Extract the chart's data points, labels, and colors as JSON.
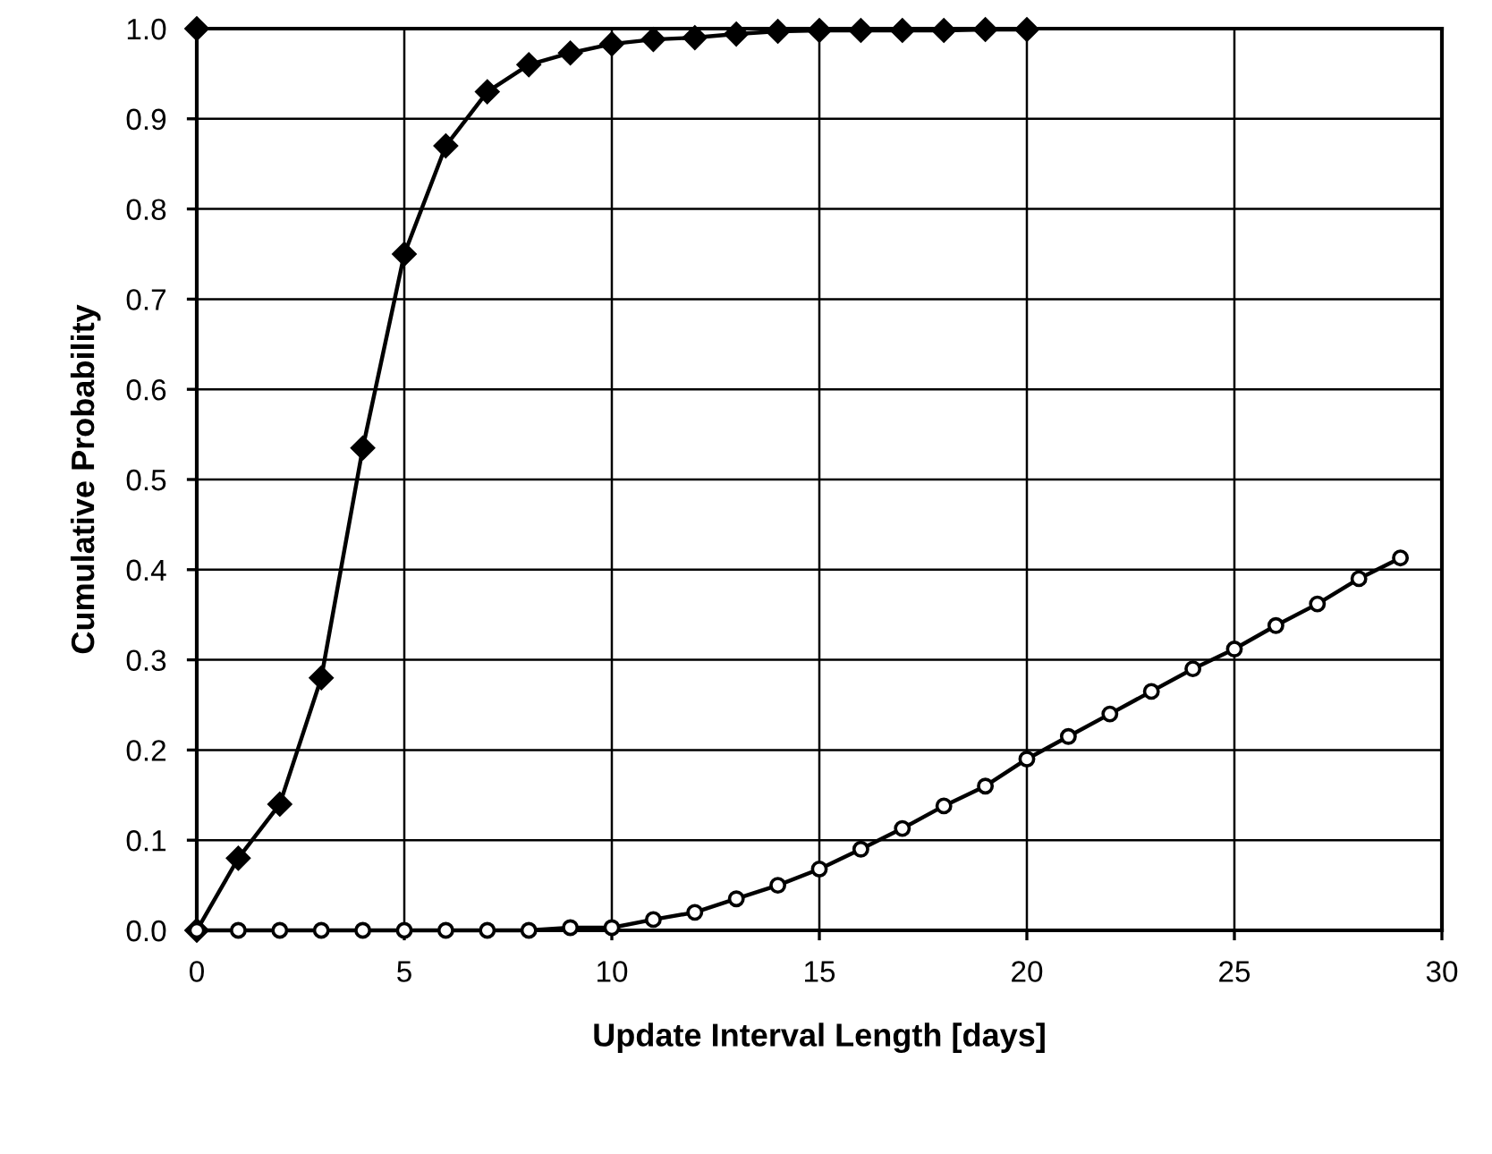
{
  "chart_data": {
    "type": "line",
    "xlabel": "Update Interval Length [days]",
    "ylabel": "Cumulative Probability",
    "x": [
      0,
      1,
      2,
      3,
      4,
      5,
      6,
      7,
      8,
      9,
      10,
      11,
      12,
      13,
      14,
      15,
      16,
      17,
      18,
      19,
      20,
      21,
      22,
      23,
      24,
      25,
      26,
      27,
      28,
      29
    ],
    "series": [
      {
        "color": "#000000",
        "marker": "diamond",
        "x": [
          0,
          1,
          2,
          3,
          4,
          5,
          6,
          7,
          8,
          9,
          10,
          11,
          12,
          13,
          14,
          15,
          16,
          17,
          18,
          19,
          20
        ],
        "values": [
          0.0,
          0.08,
          0.14,
          0.28,
          0.535,
          0.75,
          0.87,
          0.93,
          0.96,
          0.973,
          0.983,
          0.988,
          0.99,
          0.994,
          0.997,
          0.998,
          0.998,
          0.998,
          0.998,
          0.999,
          0.999
        ]
      },
      {
        "color": "#000000",
        "marker": "circle",
        "values": [
          0.0,
          0.0,
          0.0,
          0.0,
          0.0,
          0.0,
          0.0,
          0.0,
          0.0,
          0.003,
          0.003,
          0.012,
          0.02,
          0.035,
          0.05,
          0.068,
          0.09,
          0.113,
          0.138,
          0.16,
          0.19,
          0.215,
          0.24,
          0.265,
          0.29,
          0.312,
          0.338,
          0.362,
          0.39,
          0.413
        ]
      },
      {
        "type": "scatter",
        "color": "#000000",
        "marker": "diamond",
        "x": [
          0
        ],
        "values": [
          1.0
        ]
      }
    ],
    "xlim": [
      0,
      30
    ],
    "xticks": [
      0,
      5,
      10,
      15,
      20,
      25,
      30
    ],
    "ylim": [
      0,
      1.0
    ],
    "yticks": [
      {
        "value": 0,
        "label": "0.0"
      },
      {
        "value": 0.1,
        "label": "0.1"
      },
      {
        "value": 0.2,
        "label": "0.2"
      },
      {
        "value": 0.3,
        "label": "0.3"
      },
      {
        "value": 0.4,
        "label": "0.4"
      },
      {
        "value": 0.5,
        "label": "0.5"
      },
      {
        "value": 0.6,
        "label": "0.6"
      },
      {
        "value": 0.7,
        "label": "0.7"
      },
      {
        "value": 0.8,
        "label": "0.8"
      },
      {
        "value": 0.9,
        "label": "0.9"
      },
      {
        "value": 1.0,
        "label": "1.0"
      }
    ],
    "grid": true,
    "line_style": "solid"
  }
}
